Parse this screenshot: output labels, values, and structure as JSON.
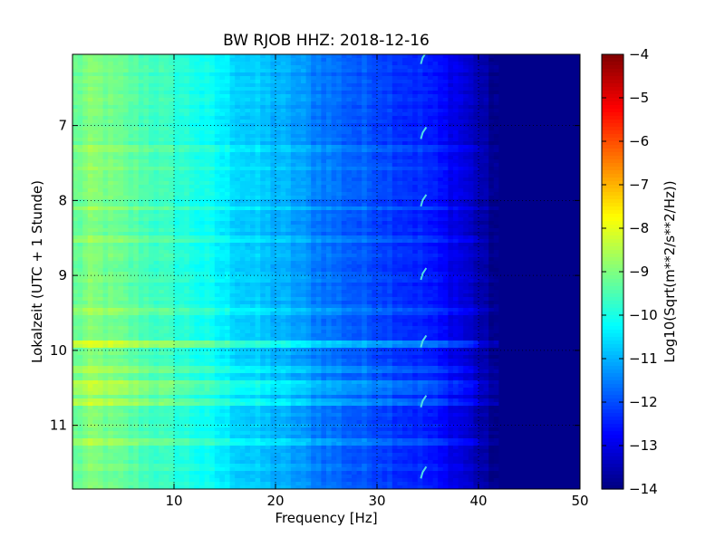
{
  "chart_data": {
    "type": "heatmap",
    "title": "BW RJOB HHZ: 2018-12-16",
    "xlabel": "Frequency [Hz]",
    "ylabel": "Lokalzeit (UTC + 1 Stunde)",
    "xlim": [
      0,
      50
    ],
    "ylim": [
      6.05,
      11.85
    ],
    "y_inverted": true,
    "x_ticks": [
      10,
      20,
      30,
      40,
      50
    ],
    "y_ticks": [
      7,
      8,
      9,
      10,
      11
    ],
    "grid": true,
    "colorbar": {
      "label": "Log10(Sqrt(m**2/s**2/Hz))",
      "range": [
        -14,
        -4
      ],
      "ticks": [
        -4,
        -5,
        -6,
        -7,
        -8,
        -9,
        -10,
        -11,
        -12,
        -13,
        -14
      ],
      "colormap": "jet"
    },
    "frequency_profile": {
      "frequency_hz": [
        0,
        2,
        5,
        8,
        10,
        12,
        14,
        16,
        18,
        20,
        22,
        24,
        26,
        28,
        30,
        32,
        34,
        35,
        36,
        38,
        40,
        41,
        42,
        45,
        50
      ],
      "log10_amplitude": [
        -9.3,
        -9.0,
        -9.3,
        -9.6,
        -9.8,
        -10.0,
        -10.3,
        -10.6,
        -10.8,
        -11.0,
        -11.2,
        -11.5,
        -11.7,
        -11.9,
        -12.0,
        -12.2,
        -12.4,
        -12.5,
        -12.7,
        -13.0,
        -13.5,
        -13.8,
        -13.9,
        -13.9,
        -13.9
      ]
    },
    "horizontal_stripes": {
      "time_hours": [
        7.3,
        7.57,
        8.1,
        8.5,
        9.5,
        9.9,
        10.25,
        10.45,
        10.55,
        10.7,
        11.22
      ],
      "log10_amplitude_offset": [
        0.3,
        0.4,
        0.3,
        0.3,
        0.4,
        0.9,
        0.5,
        0.7,
        0.5,
        0.6,
        0.5
      ]
    },
    "chirp_events": {
      "time_hours": [
        6.07,
        7.07,
        7.97,
        8.95,
        9.85,
        10.65,
        11.6
      ],
      "frequency_hz": [
        34.5,
        34.5,
        34.5,
        34.5,
        34.5,
        34.5,
        34.5
      ]
    }
  }
}
